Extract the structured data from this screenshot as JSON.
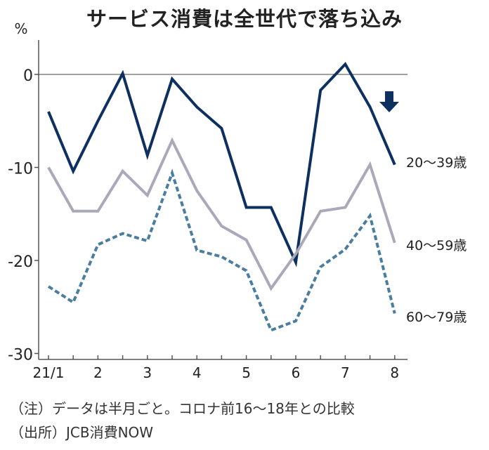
{
  "chart_data": {
    "type": "line",
    "title": "サービス消費は全世代で落ち込み",
    "ylabel": "%",
    "ylim": [
      -30,
      4
    ],
    "yticks": [
      0,
      -10,
      -20,
      -30
    ],
    "ytick_labels": [
      "0",
      "-10",
      "-20",
      "-30"
    ],
    "xtick_labels": [
      "21/1",
      "2",
      "3",
      "4",
      "5",
      "6",
      "7",
      "8"
    ],
    "grid": false,
    "reference_line": 0,
    "series": [
      {
        "name": "20〜39歳",
        "color": "#0e3061",
        "style": "solid",
        "values": [
          -4.0,
          -10.4,
          -5.0,
          0.1,
          -8.7,
          -0.5,
          -3.5,
          -5.8,
          -14.3,
          -14.3,
          -20.2,
          -1.7,
          1.1,
          -3.5,
          -9.7
        ]
      },
      {
        "name": "40〜59歳",
        "color": "#a9a9ba",
        "style": "solid",
        "values": [
          -10.0,
          -14.7,
          -14.7,
          -10.4,
          -13.0,
          -7.1,
          -12.5,
          -16.3,
          -17.8,
          -23.0,
          -19.3,
          -14.7,
          -14.3,
          -9.7,
          -18.1
        ]
      },
      {
        "name": "60〜79歳",
        "color": "#4a7d9e",
        "style": "dashed",
        "values": [
          -22.8,
          -24.5,
          -18.3,
          -17.1,
          -17.9,
          -10.6,
          -18.9,
          -19.6,
          -21.1,
          -27.5,
          -26.5,
          -20.7,
          -18.8,
          -15.2,
          -25.7
        ]
      }
    ],
    "annotation": "down-arrow"
  },
  "notes": {
    "note": "（注）データは半月ごと。コロナ前16〜18年との比較",
    "source": "（出所）JCB消費NOW"
  }
}
